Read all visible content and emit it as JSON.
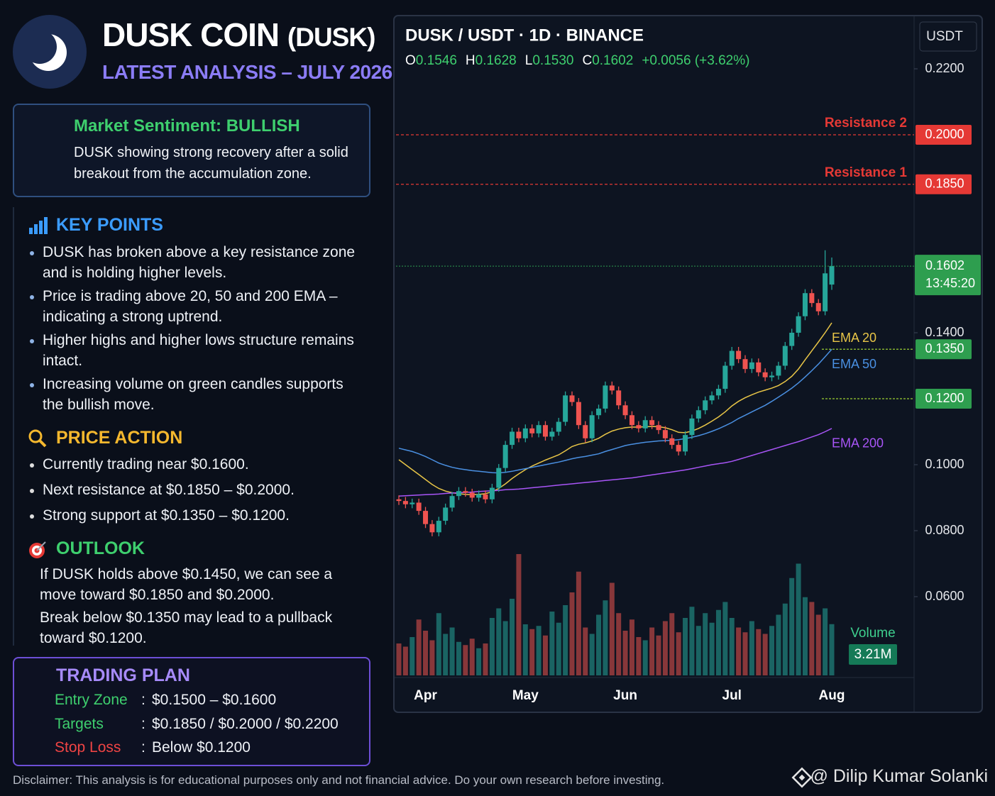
{
  "header": {
    "title": "DUSK COIN",
    "ticker": "(DUSK)",
    "subtitle": "LATEST ANALYSIS – JULY 2026"
  },
  "sentiment": {
    "title": "Market Sentiment: BULLISH",
    "text": "DUSK showing strong recovery after a solid breakout from the accumulation zone."
  },
  "key_points": {
    "title": "KEY POINTS",
    "items": [
      "DUSK has broken above a key resistance zone and is holding higher levels.",
      "Price is trading above 20, 50 and 200 EMA – indicating a strong uptrend.",
      "Higher highs and higher lows structure remains intact.",
      "Increasing volume on green candles supports the bullish move."
    ]
  },
  "price_action": {
    "title": "PRICE ACTION",
    "items": [
      "Currently trading near $0.1600.",
      "Next resistance at $0.1850 – $0.2000.",
      "Strong support at $0.1350 – $0.1200."
    ]
  },
  "outlook": {
    "title": "OUTLOOK",
    "paragraphs": [
      "If DUSK holds above $0.1450, we can see a move toward $0.1850 and $0.2000.",
      "Break below $0.1350 may lead to a pullback toward $0.1200."
    ]
  },
  "trading_plan": {
    "title": "TRADING PLAN",
    "separator": ":",
    "rows": [
      {
        "label": "Entry Zone",
        "value": "$0.1500 – $0.1600",
        "color": "#3ecf6e"
      },
      {
        "label": "Targets",
        "value": "$0.1850 / $0.2000 / $0.2200",
        "color": "#3ecf6e"
      },
      {
        "label": "Stop Loss",
        "value": "Below $0.1200",
        "color": "#ef4444"
      }
    ]
  },
  "footer": {
    "disclaimer": "Disclaimer: This analysis is for educational purposes only and not financial advice. Do your own research before investing.",
    "credit": "@ Dilip Kumar Solanki"
  },
  "chart_data": {
    "type": "candlestick",
    "title": "DUSK / USDT · 1D · BINANCE",
    "currency": "USDT",
    "ohlc_legend": [
      {
        "key": "O",
        "label": "0.1546"
      },
      {
        "key": "H",
        "label": "0.1628"
      },
      {
        "key": "L",
        "label": "0.1530"
      },
      {
        "key": "C",
        "label": "0.1602"
      }
    ],
    "change": "+0.0056 (+3.62%)",
    "up_color": "#26a69a",
    "down_color": "#ef5350",
    "categories": [
      null,
      null,
      null,
      null,
      "Apr",
      null,
      null,
      null,
      null,
      null,
      null,
      null,
      null,
      null,
      null,
      null,
      null,
      null,
      null,
      "May",
      null,
      null,
      null,
      null,
      null,
      null,
      null,
      null,
      null,
      null,
      null,
      null,
      null,
      null,
      "Jun",
      null,
      null,
      null,
      null,
      null,
      null,
      null,
      null,
      null,
      null,
      null,
      null,
      null,
      null,
      null,
      "Jul",
      null,
      null,
      null,
      null,
      null,
      null,
      null,
      null,
      null,
      null,
      null,
      null,
      null,
      null,
      "Aug"
    ],
    "open": [
      0.0895,
      0.089,
      0.088,
      0.0885,
      0.086,
      0.082,
      0.0795,
      0.083,
      0.087,
      0.0905,
      0.092,
      0.0915,
      0.09,
      0.091,
      0.0895,
      0.093,
      0.099,
      0.106,
      0.11,
      0.108,
      0.111,
      0.1095,
      0.112,
      0.1085,
      0.11,
      0.113,
      0.121,
      0.119,
      0.112,
      0.108,
      0.115,
      0.117,
      0.124,
      0.1225,
      0.118,
      0.115,
      0.112,
      0.111,
      0.1135,
      0.112,
      0.1105,
      0.108,
      0.106,
      0.104,
      0.109,
      0.114,
      0.1165,
      0.1195,
      0.121,
      0.123,
      0.13,
      0.1345,
      0.132,
      0.129,
      0.131,
      0.128,
      0.1265,
      0.127,
      0.13,
      0.136,
      0.14,
      0.145,
      0.152,
      0.149,
      0.1465,
      0.1546
    ],
    "high": [
      0.0907,
      0.0902,
      0.0897,
      0.0897,
      0.0872,
      0.0832,
      0.0842,
      0.0882,
      0.0917,
      0.0932,
      0.0932,
      0.0927,
      0.0922,
      0.0922,
      0.0942,
      0.1002,
      0.1072,
      0.1112,
      0.1112,
      0.1122,
      0.1122,
      0.1132,
      0.1132,
      0.1112,
      0.1142,
      0.1222,
      0.1222,
      0.1202,
      0.1132,
      0.1162,
      0.1182,
      0.1252,
      0.1252,
      0.1237,
      0.1192,
      0.1162,
      0.1132,
      0.1147,
      0.1147,
      0.1132,
      0.1117,
      0.1092,
      0.1072,
      0.1102,
      0.1152,
      0.1177,
      0.1207,
      0.1222,
      0.1242,
      0.1312,
      0.1357,
      0.1357,
      0.1332,
      0.1322,
      0.1322,
      0.1292,
      0.1282,
      0.1312,
      0.1372,
      0.1412,
      0.1462,
      0.1532,
      0.1532,
      0.1502,
      0.165,
      0.1628
    ],
    "low": [
      0.0878,
      0.0868,
      0.0868,
      0.0848,
      0.0808,
      0.0783,
      0.0783,
      0.0818,
      0.0858,
      0.0893,
      0.0903,
      0.0888,
      0.0888,
      0.0883,
      0.0883,
      0.0918,
      0.0978,
      0.1048,
      0.1068,
      0.1068,
      0.1083,
      0.1083,
      0.1073,
      0.1073,
      0.1088,
      0.1118,
      0.1178,
      0.1108,
      0.1068,
      0.1068,
      0.1138,
      0.1158,
      0.1213,
      0.1168,
      0.1138,
      0.1108,
      0.1098,
      0.1098,
      0.1108,
      0.1093,
      0.1068,
      0.1048,
      0.1028,
      0.1028,
      0.1078,
      0.1128,
      0.1153,
      0.1183,
      0.1198,
      0.1218,
      0.1288,
      0.1308,
      0.1278,
      0.1278,
      0.1268,
      0.1253,
      0.1253,
      0.1258,
      0.1288,
      0.1348,
      0.1388,
      0.1438,
      0.1478,
      0.1453,
      0.1453,
      0.153
    ],
    "close": [
      0.089,
      0.088,
      0.0885,
      0.086,
      0.082,
      0.0795,
      0.083,
      0.087,
      0.0905,
      0.092,
      0.0915,
      0.09,
      0.091,
      0.0895,
      0.093,
      0.099,
      0.106,
      0.11,
      0.108,
      0.111,
      0.1095,
      0.112,
      0.1085,
      0.11,
      0.113,
      0.121,
      0.119,
      0.112,
      0.108,
      0.115,
      0.117,
      0.124,
      0.1225,
      0.118,
      0.115,
      0.112,
      0.111,
      0.1135,
      0.112,
      0.1105,
      0.108,
      0.106,
      0.104,
      0.109,
      0.114,
      0.1165,
      0.1195,
      0.121,
      0.123,
      0.13,
      0.1345,
      0.132,
      0.129,
      0.131,
      0.128,
      0.1265,
      0.127,
      0.13,
      0.136,
      0.14,
      0.145,
      0.152,
      0.149,
      0.1465,
      0.158,
      0.1602
    ],
    "series": [
      {
        "name": "EMA 20",
        "color": "#e8c547",
        "values": [
          0.1015,
          0.1,
          0.0985,
          0.097,
          0.0955,
          0.094,
          0.0928,
          0.092,
          0.0915,
          0.0912,
          0.091,
          0.0909,
          0.091,
          0.0912,
          0.0918,
          0.0928,
          0.0942,
          0.0958,
          0.0972,
          0.0985,
          0.0996,
          0.1005,
          0.1014,
          0.1022,
          0.103,
          0.1042,
          0.1055,
          0.1062,
          0.1066,
          0.1072,
          0.108,
          0.1092,
          0.1102,
          0.1108,
          0.1112,
          0.1114,
          0.1114,
          0.1115,
          0.1116,
          0.1115,
          0.1112,
          0.1106,
          0.1098,
          0.1097,
          0.1102,
          0.111,
          0.112,
          0.1132,
          0.1145,
          0.116,
          0.1178,
          0.1192,
          0.1203,
          0.1212,
          0.122,
          0.1226,
          0.1232,
          0.124,
          0.1252,
          0.1268,
          0.129,
          0.1318,
          0.1345,
          0.1372,
          0.14,
          0.143
        ]
      },
      {
        "name": "EMA 50",
        "color": "#4a90e2",
        "values": [
          0.105,
          0.1045,
          0.104,
          0.1033,
          0.1025,
          0.1015,
          0.1005,
          0.0998,
          0.0992,
          0.0988,
          0.0985,
          0.0982,
          0.098,
          0.0978,
          0.0976,
          0.0975,
          0.0977,
          0.098,
          0.0984,
          0.0988,
          0.0992,
          0.0996,
          0.1,
          0.1004,
          0.1008,
          0.1013,
          0.1018,
          0.1022,
          0.1025,
          0.1029,
          0.1033,
          0.104,
          0.1046,
          0.1052,
          0.1058,
          0.1062,
          0.1065,
          0.1068,
          0.107,
          0.1072,
          0.1073,
          0.1074,
          0.1076,
          0.1079,
          0.1083,
          0.1088,
          0.1094,
          0.1101,
          0.1109,
          0.1118,
          0.1128,
          0.114,
          0.115,
          0.116,
          0.117,
          0.118,
          0.1192,
          0.1205,
          0.1218,
          0.1232,
          0.1248,
          0.1266,
          0.1285,
          0.1305,
          0.1327,
          0.135
        ]
      },
      {
        "name": "EMA 200",
        "color": "#a855f7",
        "values": [
          0.0905,
          0.0906,
          0.0907,
          0.0908,
          0.0909,
          0.091,
          0.0911,
          0.0913,
          0.0914,
          0.0915,
          0.0916,
          0.0917,
          0.0919,
          0.092,
          0.0921,
          0.0922,
          0.0924,
          0.0925,
          0.0926,
          0.0928,
          0.093,
          0.0932,
          0.0934,
          0.0936,
          0.0938,
          0.094,
          0.0942,
          0.0944,
          0.0946,
          0.0948,
          0.095,
          0.0952,
          0.0954,
          0.0956,
          0.0958,
          0.096,
          0.0963,
          0.0966,
          0.0969,
          0.0972,
          0.0975,
          0.0978,
          0.0981,
          0.0984,
          0.0988,
          0.0992,
          0.0996,
          0.1,
          0.1003,
          0.1006,
          0.101,
          0.1016,
          0.1022,
          0.1028,
          0.1034,
          0.104,
          0.1046,
          0.1052,
          0.1058,
          0.1064,
          0.107,
          0.1077,
          0.1084,
          0.1091,
          0.11,
          0.111
        ]
      }
    ],
    "volume": {
      "name": "Volume",
      "ylim": [
        0,
        8
      ],
      "values": [
        2.0,
        1.8,
        2.4,
        3.5,
        2.8,
        2.2,
        3.9,
        2.6,
        3.0,
        2.1,
        1.9,
        2.3,
        1.7,
        2.0,
        3.6,
        4.2,
        3.4,
        4.8,
        7.6,
        3.2,
        2.9,
        3.1,
        2.5,
        4.0,
        3.3,
        4.4,
        5.2,
        6.5,
        3.0,
        2.6,
        3.8,
        4.7,
        5.8,
        3.9,
        2.8,
        3.5,
        2.4,
        2.2,
        3.0,
        2.5,
        3.4,
        3.9,
        2.7,
        3.6,
        4.3,
        3.1,
        3.9,
        3.3,
        4.1,
        4.6,
        3.6,
        3.0,
        2.7,
        3.4,
        2.9,
        2.6,
        3.1,
        3.8,
        4.5,
        6.1,
        7.0,
        4.9,
        4.6,
        3.8,
        4.2,
        3.21
      ],
      "value_labels": [
        null,
        null,
        null,
        null,
        null,
        null,
        null,
        null,
        null,
        null,
        null,
        null,
        null,
        null,
        null,
        null,
        null,
        null,
        null,
        null,
        null,
        null,
        null,
        null,
        null,
        null,
        null,
        null,
        null,
        null,
        null,
        null,
        null,
        null,
        null,
        null,
        null,
        null,
        null,
        null,
        null,
        null,
        null,
        null,
        null,
        null,
        null,
        null,
        null,
        null,
        null,
        null,
        null,
        null,
        null,
        null,
        null,
        null,
        null,
        null,
        null,
        null,
        null,
        null,
        null,
        "3.21M"
      ]
    },
    "ylim": [
      0.06,
      0.22
    ],
    "yticks": [
      {
        "value": 0.22,
        "label": "0.2200"
      },
      {
        "value": 0.14,
        "label": "0.1400"
      },
      {
        "value": 0.1,
        "label": "0.1000"
      },
      {
        "value": 0.08,
        "label": "0.0800"
      },
      {
        "value": 0.06,
        "label": "0.0600"
      }
    ],
    "levels": [
      {
        "name": "Resistance 2",
        "value": 0.2,
        "label": "0.2000",
        "color": "#e53935"
      },
      {
        "name": "Resistance 1",
        "value": 0.185,
        "label": "0.1850",
        "color": "#e53935"
      },
      {
        "value": 0.135,
        "label": "0.1350",
        "color": "#2e9e4f"
      },
      {
        "value": 0.12,
        "label": "0.1200",
        "color": "#2e9e4f"
      }
    ],
    "current_price": {
      "value": 0.1602,
      "label": "0.1602",
      "countdown": "13:45:20",
      "color": "#2e9e4f"
    }
  }
}
